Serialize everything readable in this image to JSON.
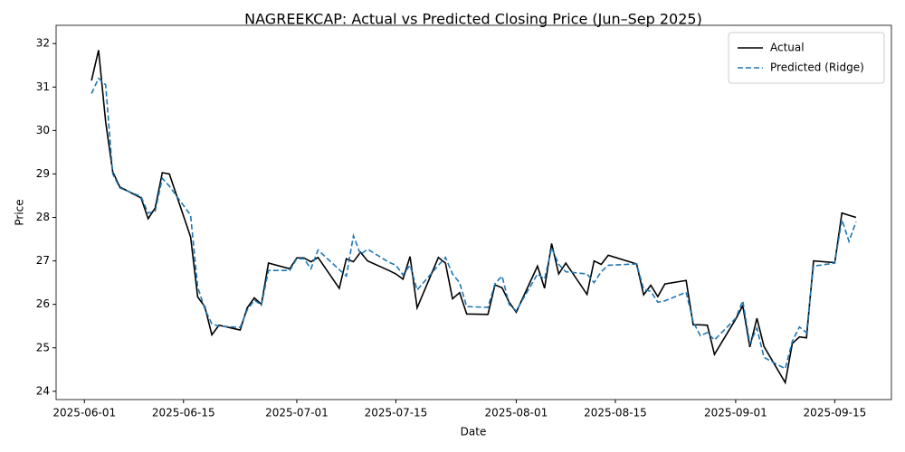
{
  "chart_data": {
    "type": "line",
    "title": "NAGREEKCAP: Actual vs Predicted Closing Price (Jun–Sep 2025)",
    "x_label": "Date",
    "y_label": "Price",
    "x": [
      "2025-06-02",
      "2025-06-03",
      "2025-06-04",
      "2025-06-05",
      "2025-06-06",
      "2025-06-09",
      "2025-06-10",
      "2025-06-11",
      "2025-06-12",
      "2025-06-13",
      "2025-06-16",
      "2025-06-17",
      "2025-06-18",
      "2025-06-19",
      "2025-06-20",
      "2025-06-23",
      "2025-06-24",
      "2025-06-25",
      "2025-06-26",
      "2025-06-27",
      "2025-06-30",
      "2025-07-01",
      "2025-07-02",
      "2025-07-03",
      "2025-07-04",
      "2025-07-07",
      "2025-07-08",
      "2025-07-09",
      "2025-07-10",
      "2025-07-11",
      "2025-07-14",
      "2025-07-15",
      "2025-07-16",
      "2025-07-17",
      "2025-07-18",
      "2025-07-21",
      "2025-07-22",
      "2025-07-23",
      "2025-07-24",
      "2025-07-25",
      "2025-07-28",
      "2025-07-29",
      "2025-07-30",
      "2025-07-31",
      "2025-08-01",
      "2025-08-04",
      "2025-08-05",
      "2025-08-06",
      "2025-08-07",
      "2025-08-08",
      "2025-08-11",
      "2025-08-12",
      "2025-08-13",
      "2025-08-14",
      "2025-08-18",
      "2025-08-19",
      "2025-08-20",
      "2025-08-21",
      "2025-08-22",
      "2025-08-25",
      "2025-08-26",
      "2025-08-27",
      "2025-08-28",
      "2025-08-29",
      "2025-09-01",
      "2025-09-02",
      "2025-09-03",
      "2025-09-04",
      "2025-09-05",
      "2025-09-08",
      "2025-09-09",
      "2025-09-10",
      "2025-09-11",
      "2025-09-12",
      "2025-09-15",
      "2025-09-16",
      "2025-09-17",
      "2025-09-18"
    ],
    "series": [
      {
        "name": "Actual",
        "color": "#000000",
        "dash": "none",
        "values": [
          31.15,
          31.85,
          30.2,
          29.05,
          28.7,
          28.45,
          27.97,
          28.22,
          29.03,
          29.0,
          27.55,
          26.17,
          25.95,
          25.3,
          25.52,
          25.41,
          25.92,
          26.15,
          26.0,
          26.95,
          26.82,
          27.07,
          27.07,
          26.98,
          27.08,
          26.37,
          27.05,
          26.98,
          27.2,
          27.0,
          26.78,
          26.7,
          26.58,
          27.1,
          25.92,
          27.08,
          26.95,
          26.13,
          26.27,
          25.78,
          25.77,
          26.45,
          26.38,
          26.05,
          25.82,
          26.88,
          26.37,
          27.4,
          26.7,
          26.95,
          26.23,
          27.0,
          26.92,
          27.13,
          26.93,
          26.22,
          26.44,
          26.18,
          26.47,
          26.55,
          25.53,
          25.53,
          25.52,
          24.85,
          25.66,
          25.97,
          25.02,
          25.68,
          25.03,
          24.2,
          25.1,
          25.25,
          25.23,
          27.0,
          26.96,
          28.1,
          28.05,
          28.0
        ]
      },
      {
        "name": "Predicted (Ridge)",
        "color": "#1f77b4",
        "dash": "6,3",
        "values": [
          30.85,
          31.2,
          31.05,
          29.0,
          28.68,
          28.48,
          28.1,
          28.15,
          28.9,
          28.72,
          28.05,
          26.4,
          25.9,
          25.55,
          25.5,
          25.47,
          25.87,
          26.1,
          25.98,
          26.78,
          26.78,
          27.05,
          27.05,
          26.82,
          27.25,
          26.8,
          26.65,
          27.58,
          27.15,
          27.27,
          26.97,
          26.9,
          26.68,
          26.9,
          26.33,
          26.9,
          27.08,
          26.7,
          26.5,
          25.95,
          25.93,
          26.48,
          26.65,
          26.0,
          25.85,
          26.7,
          26.58,
          27.3,
          26.92,
          26.75,
          26.7,
          26.5,
          26.75,
          26.9,
          26.93,
          26.35,
          26.3,
          26.05,
          26.08,
          26.28,
          25.6,
          25.28,
          25.35,
          25.18,
          25.68,
          26.08,
          25.1,
          25.45,
          24.78,
          24.52,
          25.15,
          25.48,
          25.35,
          26.88,
          26.95,
          27.95,
          27.45,
          27.9
        ]
      }
    ],
    "xlim": [
      "2025-05-28",
      "2025-09-23"
    ],
    "xticks": [
      "2025-06-01",
      "2025-06-15",
      "2025-07-01",
      "2025-07-15",
      "2025-08-01",
      "2025-08-15",
      "2025-09-01",
      "2025-09-15"
    ],
    "ylim": [
      23.81,
      32.42
    ],
    "yticks": [
      24,
      25,
      26,
      27,
      28,
      29,
      30,
      31,
      32
    ],
    "grid": false,
    "legend": "upper right"
  }
}
